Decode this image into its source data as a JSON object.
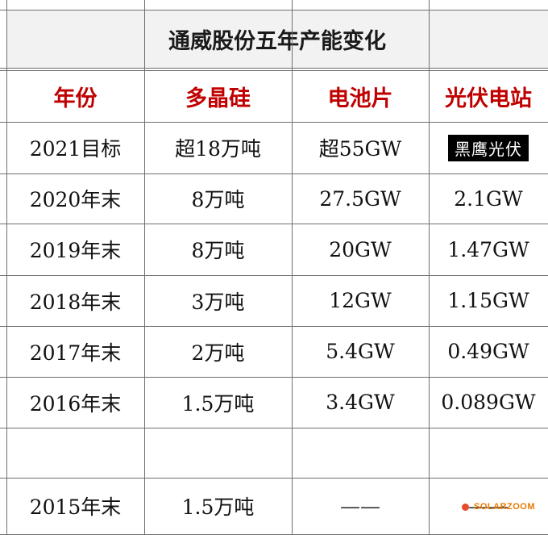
{
  "title": "通威股份五年产能变化",
  "headers": [
    "年份",
    "多晶硅",
    "电池片",
    "光伏电站"
  ],
  "rows": [
    [
      "2021目标",
      "超18万吨",
      "超55GW",
      "黑鹰光伏"
    ],
    [
      "2020年末",
      "8万吨",
      "27.5GW",
      "2.1GW"
    ],
    [
      "2019年末",
      "8万吨",
      "20GW",
      "1.47GW"
    ],
    [
      "2018年末",
      "3万吨",
      "12GW",
      "1.15GW"
    ],
    [
      "2017年末",
      "2万吨",
      "5.4GW",
      "0.49GW"
    ],
    [
      "2016年末",
      "1.5万吨",
      "3.4GW",
      "0.089GW"
    ],
    [
      "",
      "",
      "",
      ""
    ],
    [
      "2015年末",
      "1.5万吨",
      "——",
      "——"
    ]
  ],
  "watermark": "SOLARZOOM",
  "colors": {
    "header_text": "#c00000",
    "title_bg": "#f2f2f2",
    "grid": "#6f6f6f",
    "watermark": "#e87a00"
  }
}
